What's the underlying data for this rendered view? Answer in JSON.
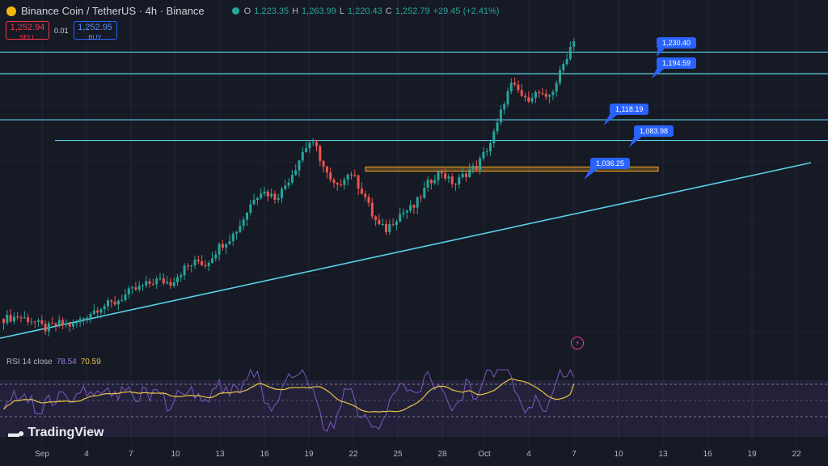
{
  "header": {
    "symbol": "Binance Coin / TetherUS · 4h · Binance",
    "open_label": "O",
    "open": "1,223.35",
    "high_label": "H",
    "high": "1,263.99",
    "low_label": "L",
    "low": "1,220.43",
    "close_label": "C",
    "close": "1,252.79",
    "change": "+29.45 (+2.41%)"
  },
  "trade": {
    "sell_price": "1,252.94",
    "sell_label": "SELL",
    "spread": "0.01",
    "buy_price": "1,252.95",
    "buy_label": "BUY"
  },
  "rsi": {
    "label": "RSI 14 close",
    "value": "78.54",
    "ma_value": "70.59"
  },
  "branding": {
    "name": "TradingView"
  },
  "colors": {
    "background": "#161a25",
    "up": "#26a69a",
    "down": "#ef5350",
    "level_line": "#5ad1e6",
    "callout": "#2962ff",
    "rsi": "#7e57c2",
    "rsi_ma": "#e8c547",
    "zone": "#f5a623"
  },
  "chart_data": {
    "type": "candlestick",
    "x_tick_labels": [
      "Sep",
      "4",
      "7",
      "10",
      "13",
      "16",
      "19",
      "22",
      "25",
      "28",
      "Oct",
      "4",
      "7",
      "10",
      "13",
      "16",
      "19",
      "22"
    ],
    "y_range": [
      740,
      1290
    ],
    "price_path": [
      [
        0,
        788
      ],
      [
        4,
        792
      ],
      [
        8,
        786
      ],
      [
        12,
        772
      ],
      [
        16,
        780
      ],
      [
        20,
        777
      ],
      [
        24,
        795
      ],
      [
        28,
        809
      ],
      [
        32,
        815
      ],
      [
        36,
        832
      ],
      [
        40,
        842
      ],
      [
        44,
        852
      ],
      [
        48,
        848
      ],
      [
        52,
        872
      ],
      [
        56,
        884
      ],
      [
        58,
        878
      ],
      [
        62,
        908
      ],
      [
        66,
        928
      ],
      [
        68,
        944
      ],
      [
        70,
        966
      ],
      [
        72,
        990
      ],
      [
        74,
        1000
      ],
      [
        76,
        996
      ],
      [
        78,
        990
      ],
      [
        80,
        1000
      ],
      [
        82,
        1020
      ],
      [
        84,
        1040
      ],
      [
        86,
        1065
      ],
      [
        88,
        1081
      ],
      [
        90,
        1070
      ],
      [
        92,
        1040
      ],
      [
        94,
        1015
      ],
      [
        96,
        1005
      ],
      [
        98,
        1025
      ],
      [
        100,
        1030
      ],
      [
        102,
        1010
      ],
      [
        104,
        990
      ],
      [
        106,
        960
      ],
      [
        108,
        942
      ],
      [
        110,
        936
      ],
      [
        112,
        950
      ],
      [
        114,
        962
      ],
      [
        116,
        968
      ],
      [
        118,
        974
      ],
      [
        120,
        992
      ],
      [
        122,
        1012
      ],
      [
        124,
        1025
      ],
      [
        126,
        1032
      ],
      [
        128,
        1018
      ],
      [
        130,
        1012
      ],
      [
        132,
        1025
      ],
      [
        134,
        1035
      ],
      [
        136,
        1040
      ],
      [
        138,
        1060
      ],
      [
        140,
        1080
      ],
      [
        142,
        1110
      ],
      [
        144,
        1150
      ],
      [
        146,
        1175
      ],
      [
        148,
        1166
      ],
      [
        150,
        1150
      ],
      [
        152,
        1160
      ],
      [
        154,
        1162
      ],
      [
        156,
        1150
      ],
      [
        158,
        1168
      ],
      [
        160,
        1195
      ],
      [
        162,
        1225
      ],
      [
        164,
        1253
      ]
    ],
    "horizontal_levels": [
      {
        "price": 1230.4,
        "label": "1,230.40"
      },
      {
        "price": 1194.59,
        "label": "1,194.59"
      },
      {
        "price": 1118.19,
        "label": "1,118.19"
      },
      {
        "price": 1083.98,
        "label": "1,083.98"
      }
    ],
    "zone": {
      "price_low": 1033,
      "price_high": 1040,
      "label": "1,036.25"
    },
    "trendline": {
      "from_price": 756,
      "to_price": 1047
    },
    "rsi": {
      "current": 78.54,
      "ma": 70.59,
      "upper_band": 70,
      "lower_band": 30
    }
  }
}
